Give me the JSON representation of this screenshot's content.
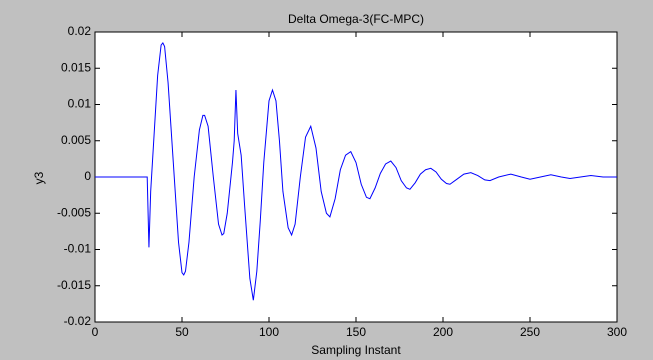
{
  "chart_data": {
    "type": "line",
    "title": "Delta Omega-3(FC-MPC)",
    "xlabel": "Sampling Instant",
    "ylabel": "y3",
    "x": [
      0,
      29,
      30,
      31,
      32,
      34,
      36,
      38,
      39,
      40,
      42,
      45,
      48,
      50,
      51,
      52,
      54,
      57,
      60,
      62,
      63,
      65,
      68,
      71,
      73,
      74,
      76,
      79,
      80,
      81,
      82,
      84,
      86,
      89,
      91,
      93,
      95,
      97,
      100,
      102,
      104,
      106,
      108,
      111,
      113,
      115,
      118,
      121,
      124,
      127,
      130,
      133,
      135,
      138,
      141,
      144,
      147,
      150,
      153,
      156,
      158,
      161,
      164,
      167,
      170,
      173,
      176,
      179,
      181,
      184,
      187,
      190,
      193,
      196,
      199,
      202,
      204,
      208,
      212,
      216,
      220,
      224,
      227,
      232,
      239,
      245,
      250,
      256,
      262,
      268,
      273,
      279,
      285,
      292,
      300
    ],
    "series": [
      {
        "name": "y3",
        "color": "#0000ff",
        "values": [
          0,
          0,
          0,
          -0.0097,
          -0.002,
          0.006,
          0.014,
          0.0182,
          0.0185,
          0.018,
          0.013,
          0.002,
          -0.009,
          -0.0132,
          -0.0135,
          -0.013,
          -0.009,
          0,
          0.0065,
          0.0085,
          0.0085,
          0.007,
          0,
          -0.0065,
          -0.008,
          -0.0078,
          -0.005,
          0.002,
          0.005,
          0.012,
          0.006,
          0.003,
          -0.004,
          -0.014,
          -0.017,
          -0.013,
          -0.006,
          0.002,
          0.0105,
          0.012,
          0.0105,
          0.005,
          -0.002,
          -0.007,
          -0.008,
          -0.0065,
          0,
          0.0055,
          0.007,
          0.004,
          -0.002,
          -0.005,
          -0.0055,
          -0.003,
          0.001,
          0.003,
          0.0035,
          0.002,
          -0.001,
          -0.0028,
          -0.003,
          -0.0015,
          0.0005,
          0.0018,
          0.0022,
          0.0013,
          -0.0005,
          -0.0015,
          -0.0017,
          -0.0008,
          0.0004,
          0.001,
          0.0012,
          0.0007,
          -0.0003,
          -0.0009,
          -0.001,
          -0.0003,
          0.0004,
          0.0006,
          0.0002,
          -0.0004,
          -0.0005,
          0,
          0.0004,
          0,
          -0.0003,
          0,
          0.0003,
          0,
          -0.0002,
          0,
          0.0002,
          0,
          0
        ]
      }
    ],
    "xlim": [
      0,
      300
    ],
    "xticks": [
      0,
      50,
      100,
      150,
      200,
      250,
      300
    ],
    "ylim": [
      -0.02,
      0.02
    ],
    "yticks": [
      -0.02,
      -0.015,
      -0.01,
      -0.005,
      0,
      0.005,
      0.01,
      0.015,
      0.02
    ],
    "grid": false
  }
}
